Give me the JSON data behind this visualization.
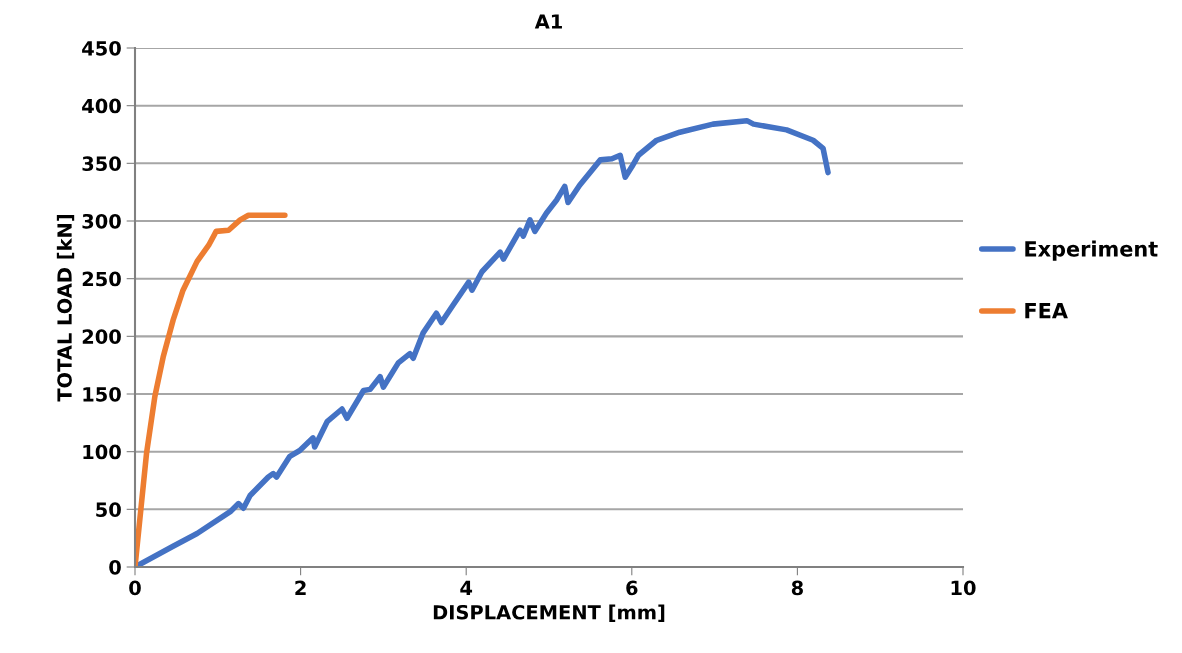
{
  "chart_data": {
    "type": "line",
    "title": "A1",
    "xlabel": "DISPLACEMENT [mm]",
    "ylabel": "TOTAL LOAD [kN]",
    "xlim": [
      0,
      10
    ],
    "xticks": [
      0,
      2,
      4,
      6,
      8,
      10
    ],
    "ylim": [
      0,
      450
    ],
    "yticks": [
      0,
      50,
      100,
      150,
      200,
      250,
      300,
      350,
      400,
      450
    ],
    "grid": "y",
    "legend": "right",
    "marker": "none",
    "line_style": "solid",
    "series": [
      {
        "name": "Experiment",
        "color": "#4472c4",
        "x": [
          0,
          0.46,
          0.75,
          1.15,
          1.25,
          1.31,
          1.39,
          1.61,
          1.67,
          1.71,
          1.87,
          1.99,
          2.15,
          2.17,
          2.32,
          2.5,
          2.56,
          2.76,
          2.84,
          2.96,
          3.0,
          3.18,
          3.32,
          3.36,
          3.48,
          3.64,
          3.7,
          3.84,
          4.03,
          4.07,
          4.19,
          4.41,
          4.45,
          4.65,
          4.69,
          4.77,
          4.83,
          4.97,
          5.09,
          5.19,
          5.23,
          5.37,
          5.62,
          5.76,
          5.86,
          5.92,
          6.0,
          6.08,
          6.3,
          6.58,
          6.98,
          7.39,
          7.47,
          7.87,
          8.19,
          8.31,
          8.37
        ],
        "values": [
          0,
          18,
          29,
          48,
          55,
          51,
          62,
          78,
          81,
          78,
          96,
          101,
          112,
          104,
          126,
          137,
          129,
          153,
          154,
          165,
          156,
          177,
          185,
          181,
          203,
          220,
          212,
          227,
          247,
          240,
          256,
          273,
          267,
          292,
          287,
          301,
          291,
          307,
          318,
          330,
          316,
          331,
          353,
          354,
          357,
          338,
          347,
          357,
          370,
          377,
          384,
          387,
          384,
          379,
          370,
          363,
          342
        ]
      },
      {
        "name": "FEA",
        "color": "#ed7d31",
        "x": [
          0,
          0.14,
          0.24,
          0.34,
          0.46,
          0.58,
          0.75,
          0.89,
          0.98,
          1.13,
          1.27,
          1.37,
          1.81
        ],
        "values": [
          0,
          99,
          148,
          182,
          214,
          240,
          265,
          279,
          291,
          292,
          301,
          305,
          305
        ]
      }
    ]
  }
}
